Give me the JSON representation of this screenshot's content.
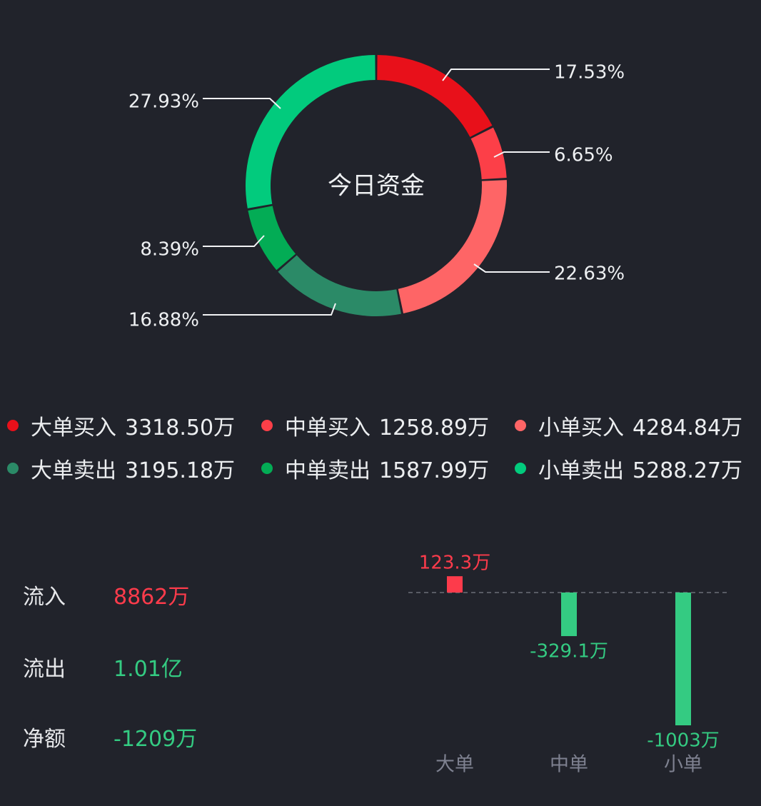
{
  "chart_data": [
    {
      "type": "pie",
      "center_label": "今日资金",
      "slices": [
        {
          "name": "大单买入",
          "percent_label": "17.53%",
          "value": 17.53,
          "amount": "3318.50万",
          "color": "#e8101a"
        },
        {
          "name": "中单买入",
          "percent_label": "6.65%",
          "value": 6.65,
          "amount": "1258.89万",
          "color": "#fc3f48"
        },
        {
          "name": "小单买入",
          "percent_label": "22.63%",
          "value": 22.63,
          "amount": "4284.84万",
          "color": "#fe6566"
        },
        {
          "name": "大单卖出",
          "percent_label": "16.88%",
          "value": 16.88,
          "amount": "3195.18万",
          "color": "#2b8a67"
        },
        {
          "name": "中单卖出",
          "percent_label": "8.39%",
          "value": 8.39,
          "amount": "1587.99万",
          "color": "#03ac55"
        },
        {
          "name": "小单卖出",
          "percent_label": "27.93%",
          "value": 27.93,
          "amount": "5288.27万",
          "color": "#02cb7d"
        }
      ]
    },
    {
      "type": "bar",
      "categories": [
        "大单",
        "中单",
        "小单"
      ],
      "values": [
        123.3,
        -329.1,
        -1003
      ],
      "value_labels": [
        "123.3万",
        "-329.1万",
        "-1003万"
      ],
      "unit": "万",
      "ylim": [
        -1003,
        123.3
      ],
      "colors": {
        "positive": "#fd3b4b",
        "negative": "#34cb82",
        "axis_line": "#6b6e78",
        "category_text": "#7e8190"
      }
    }
  ],
  "summary": {
    "inflow_label": "流入",
    "inflow_value": "8862万",
    "outflow_label": "流出",
    "outflow_value": "1.01亿",
    "net_label": "净额",
    "net_value": "-1209万",
    "colors": {
      "positive": "#fd3b4b",
      "negative": "#34cb82"
    }
  }
}
